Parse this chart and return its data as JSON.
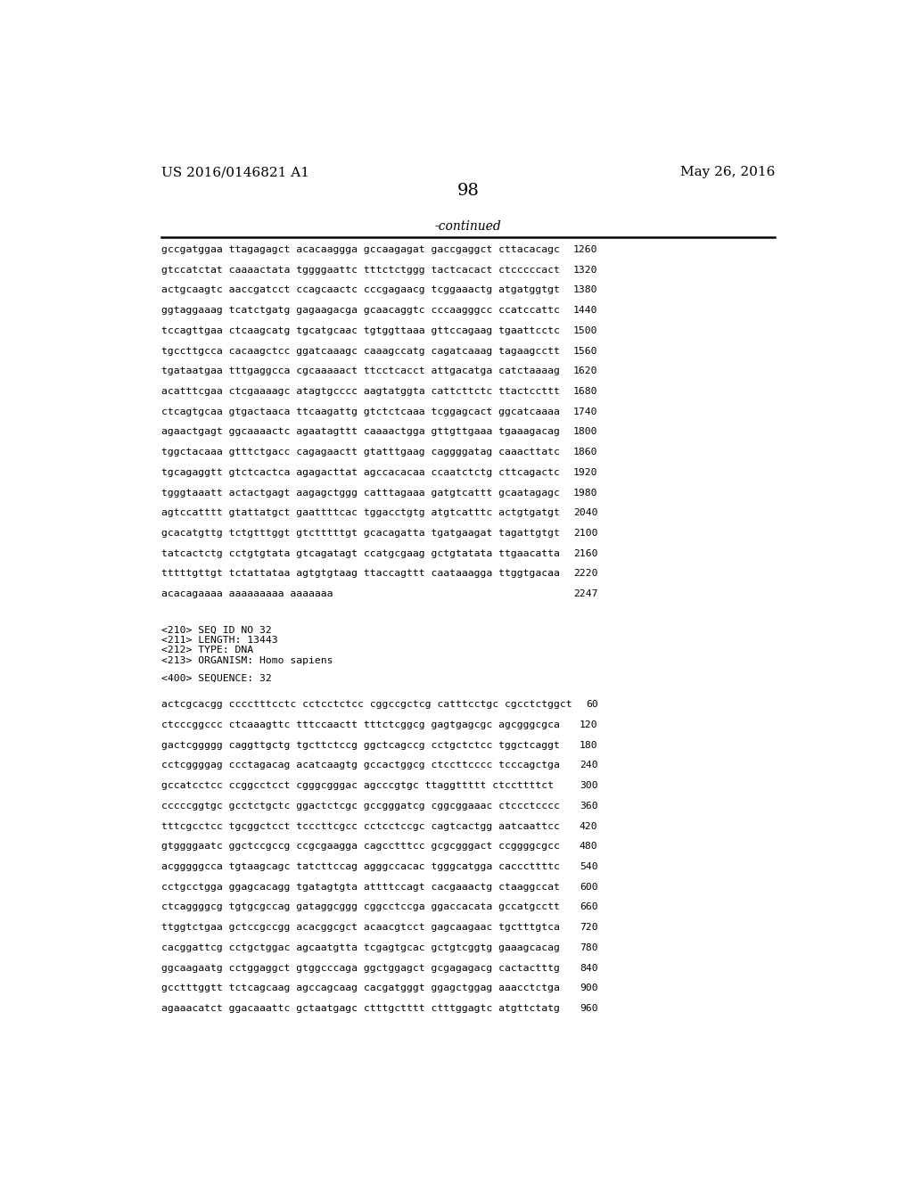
{
  "header_left": "US 2016/0146821 A1",
  "header_right": "May 26, 2016",
  "page_number": "98",
  "continued_label": "-continued",
  "background_color": "#ffffff",
  "text_color": "#000000",
  "sequence_lines_part1": [
    [
      "gccgatggaa ttagagagct acacaaggga gccaagagat gaccgaggct cttacacagc",
      "1260"
    ],
    [
      "gtccatctat caaaactata tggggaattc tttctctggg tactcacact ctcccccact",
      "1320"
    ],
    [
      "actgcaagtc aaccgatcct ccagcaactc cccgagaacg tcggaaactg atgatggtgt",
      "1380"
    ],
    [
      "ggtaggaaag tcatctgatg gagaagacga gcaacaggtc cccaagggcc ccatccattc",
      "1440"
    ],
    [
      "tccagttgaa ctcaagcatg tgcatgcaac tgtggttaaa gttccagaag tgaattcctc",
      "1500"
    ],
    [
      "tgccttgcca cacaagctcc ggatcaaagc caaagccatg cagatcaaag tagaagcctt",
      "1560"
    ],
    [
      "tgataatgaa tttgaggcca cgcaaaaact ttcctcacct attgacatga catctaaaag",
      "1620"
    ],
    [
      "acatttcgaa ctcgaaaagc atagtgcccc aagtatggta cattcttctc ttactccttt",
      "1680"
    ],
    [
      "ctcagtgcaa gtgactaaca ttcaagattg gtctctcaaa tcggagcact ggcatcaaaa",
      "1740"
    ],
    [
      "agaactgagt ggcaaaactc agaatagttt caaaactgga gttgttgaaa tgaaagacag",
      "1800"
    ],
    [
      "tggctacaaa gtttctgacc cagagaactt gtatttgaag caggggatag caaacttatc",
      "1860"
    ],
    [
      "tgcagaggtt gtctcactca agagacttat agccacacaa ccaatctctg cttcagactc",
      "1920"
    ],
    [
      "tgggtaaatt actactgagt aagagctggg catttagaaa gatgtcattt gcaatagagc",
      "1980"
    ],
    [
      "agtccatttt gtattatgct gaattttcac tggacctgtg atgtcatttc actgtgatgt",
      "2040"
    ],
    [
      "gcacatgttg tctgtttggt gtctttttgt gcacagatta tgatgaagat tagattgtgt",
      "2100"
    ],
    [
      "tatcactctg cctgtgtata gtcagatagt ccatgcgaag gctgtatata ttgaacatta",
      "2160"
    ],
    [
      "tttttgttgt tctattataa agtgtgtaag ttaccagttt caataaagga ttggtgacaa",
      "2220"
    ],
    [
      "acacagaaaa aaaaaaaaa aaaaaaa",
      "2247"
    ]
  ],
  "metadata_lines": [
    "<210> SEQ ID NO 32",
    "<211> LENGTH: 13443",
    "<212> TYPE: DNA",
    "<213> ORGANISM: Homo sapiens"
  ],
  "sequence_header": "<400> SEQUENCE: 32",
  "sequence_lines_part2": [
    [
      "actcgcacgg cccctttcctc cctcctctcc cggccgctcg catttcctgc cgcctctggct",
      "60"
    ],
    [
      "ctcccggccc ctcaaagttc tttccaactt tttctcggcg gagtgagcgc agcgggcgca",
      "120"
    ],
    [
      "gactcggggg caggttgctg tgcttctccg ggctcagccg cctgctctcc tggctcaggt",
      "180"
    ],
    [
      "cctcggggag ccctagacag acatcaagtg gccactggcg ctccttcccc tcccagctga",
      "240"
    ],
    [
      "gccatcctcc ccggcctcct cgggcgggac agcccgtgc ttaggttttt ctccttttct",
      "300"
    ],
    [
      "cccccggtgc gcctctgctc ggactctcgc gccgggatcg cggcggaaac ctccctcccc",
      "360"
    ],
    [
      "tttcgcctcc tgcggctcct tcccttcgcc cctcctccgc cagtcactgg aatcaattcc",
      "420"
    ],
    [
      "gtggggaatc ggctccgccg ccgcgaagga cagcctttcc gcgcgggact ccggggcgcc",
      "480"
    ],
    [
      "acgggggcca tgtaagcagc tatcttccag agggccacac tgggcatgga cacccttttc",
      "540"
    ],
    [
      "cctgcctgga ggagcacagg tgatagtgta attttccagt cacgaaactg ctaaggccat",
      "600"
    ],
    [
      "ctcaggggcg tgtgcgccag gataggcggg cggcctccga ggaccacata gccatgcctt",
      "660"
    ],
    [
      "ttggtctgaa gctccgccgg acacggcgct acaacgtcct gagcaagaac tgctttgtca",
      "720"
    ],
    [
      "cacggattcg cctgctggac agcaatgtta tcgagtgcac gctgtcggtg gaaagcacag",
      "780"
    ],
    [
      "ggcaagaatg cctggaggct gtggcccaga ggctggagct gcgagagacg cactactttg",
      "840"
    ],
    [
      "gcctttggtt tctcagcaag agccagcaag cacgatgggt ggagctggag aaacctctga",
      "900"
    ],
    [
      "agaaacatct ggacaaattc gctaatgagc ctttgctttt ctttggagtc atgttctatg",
      "960"
    ]
  ]
}
